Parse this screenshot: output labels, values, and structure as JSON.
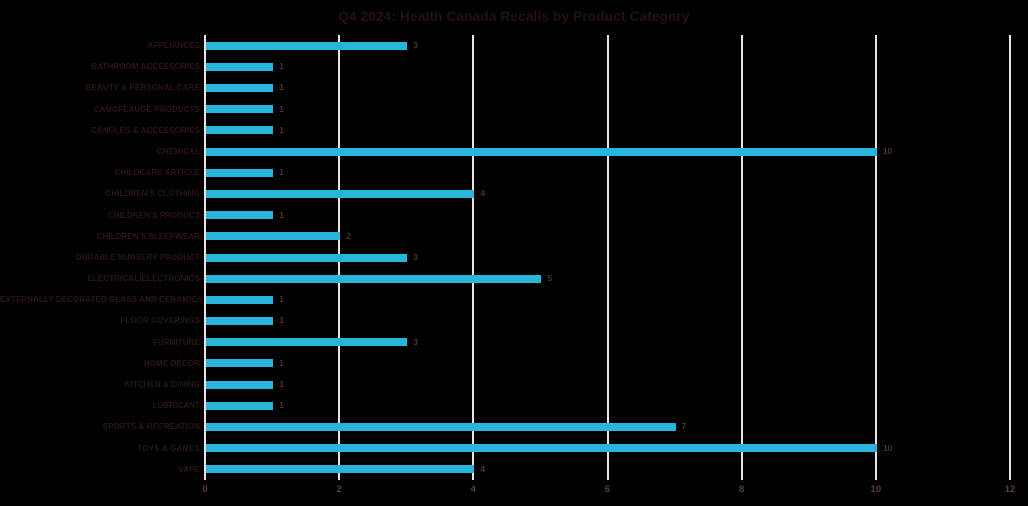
{
  "title": "Q4 2024: Health Canada Recalls by Product Category",
  "colors": {
    "background": "#000000",
    "bar": "#27b5d9",
    "gridline": "#ece1e5",
    "title_text": "#241018",
    "category_label": "#2a151c",
    "value_label": "#502f3a",
    "tick_label": "#5f3945"
  },
  "chart_data": {
    "type": "bar",
    "orientation": "horizontal",
    "title": "Q4 2024: Health Canada Recalls by Product Category",
    "xlabel": "",
    "ylabel": "",
    "xlim": [
      0,
      12
    ],
    "x_ticks": [
      0,
      2,
      4,
      6,
      8,
      10,
      12
    ],
    "grid": true,
    "value_labels_shown": true,
    "legend": "none",
    "categories": [
      "APPLIANCES",
      "BATHROOM ACCESSORIES",
      "BEAUTY & PERSONAL CARE",
      "CAMOFLAUGE PRODUCTS",
      "CANDLES & ACCESSORIES",
      "CHEMICAL",
      "CHILDCARE ARTICLE",
      "CHILDREN'S CLOTHING",
      "CHILDREN'S PRODUCT",
      "CHILDREN'S SLEEPWEAR",
      "DURABLE NURSERY PRODUCT",
      "ELECTRICAL/ELECTRONICS",
      "EXTERNALLY DECORATED GLASS AND CERAMICS",
      "FLOOR COVERINGS",
      "FURNITURE",
      "HOME DÉCOR",
      "KITCHEN & DINING",
      "LUBRICANT",
      "SPORTS & RECREATION",
      "TOYS & GAMES",
      "VAPE"
    ],
    "values": [
      3,
      1,
      1,
      1,
      1,
      10,
      1,
      4,
      1,
      2,
      3,
      5,
      1,
      1,
      3,
      1,
      1,
      1,
      7,
      10,
      4
    ]
  }
}
